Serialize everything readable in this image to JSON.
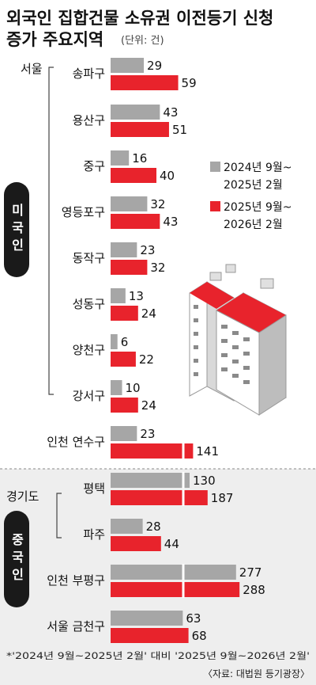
{
  "chart_data": {
    "type": "bar",
    "title_line1": "외국인 집합건물 소유권 이전등기 신청",
    "title_line2": "증가 주요지역",
    "unit": "(단위: 건)",
    "regions": [
      {
        "label": "서울"
      },
      {
        "label": "미국인"
      },
      {
        "label": "경기도"
      },
      {
        "label": "중국인"
      }
    ],
    "categories": [
      "송파구",
      "용산구",
      "중구",
      "영등포구",
      "동작구",
      "성동구",
      "양천구",
      "강서구",
      "인천 연수구",
      "평택",
      "파주",
      "인천 부평구",
      "서울 금천구"
    ],
    "series": [
      {
        "name_line1": "2024년 9월~",
        "name_line2": "2025년 2월",
        "color": "#a6a6a6",
        "values": [
          29,
          43,
          16,
          32,
          23,
          13,
          6,
          10,
          23,
          130,
          28,
          277,
          63
        ]
      },
      {
        "name_line1": "2025년 9월~",
        "name_line2": "2026년 2월",
        "color": "#e8232c",
        "values": [
          59,
          51,
          40,
          43,
          32,
          24,
          22,
          24,
          141,
          187,
          44,
          288,
          68
        ]
      }
    ],
    "footnote": "*'2024년 9월~2025년 2월' 대비 '2025년 9월~2026년 2월'",
    "source": "〈자료: 대법원 등기광장〉"
  }
}
